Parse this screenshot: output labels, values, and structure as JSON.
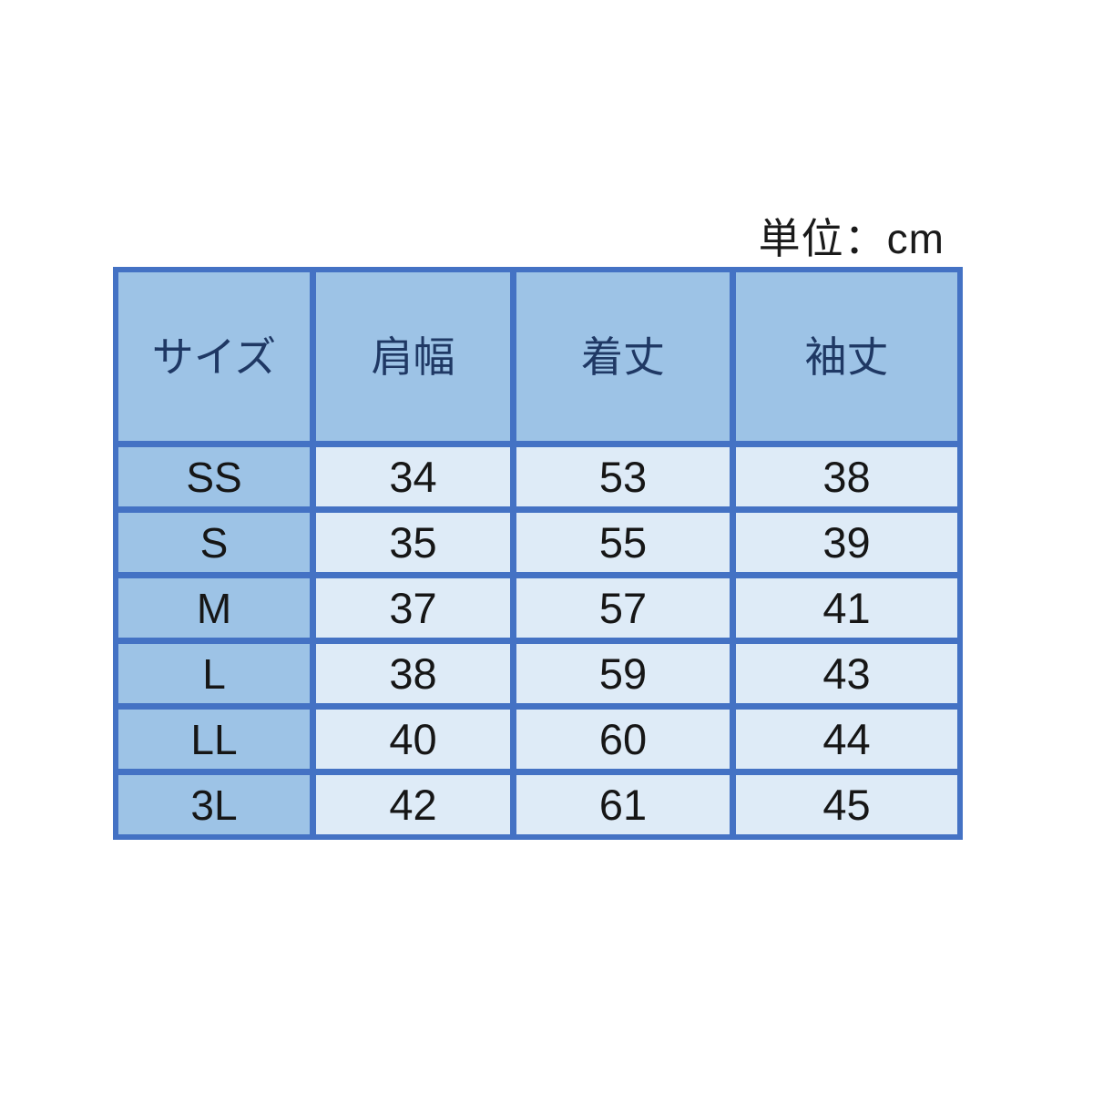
{
  "unit_label": "単位：cm",
  "colors": {
    "border": "#4472c4",
    "header_fill": "#9dc3e6",
    "cell_fill": "#deebf7",
    "header_text": "#1f3864",
    "cell_text": "#161616",
    "title_text": "#1a1a1a",
    "background": "#ffffff"
  },
  "chart_data": {
    "type": "table",
    "title": "単位：cm",
    "columns": [
      "サイズ",
      "肩幅",
      "着丈",
      "袖丈"
    ],
    "rows": [
      [
        "SS",
        34,
        53,
        38
      ],
      [
        "S",
        35,
        55,
        39
      ],
      [
        "M",
        37,
        57,
        41
      ],
      [
        "L",
        38,
        59,
        43
      ],
      [
        "LL",
        40,
        60,
        44
      ],
      [
        "3L",
        42,
        61,
        45
      ]
    ],
    "layout_hints": {
      "header_row": true,
      "first_column_is_row_header": true,
      "grid": "thick blue gridlines",
      "unit_label_position": "top-right above table"
    }
  }
}
